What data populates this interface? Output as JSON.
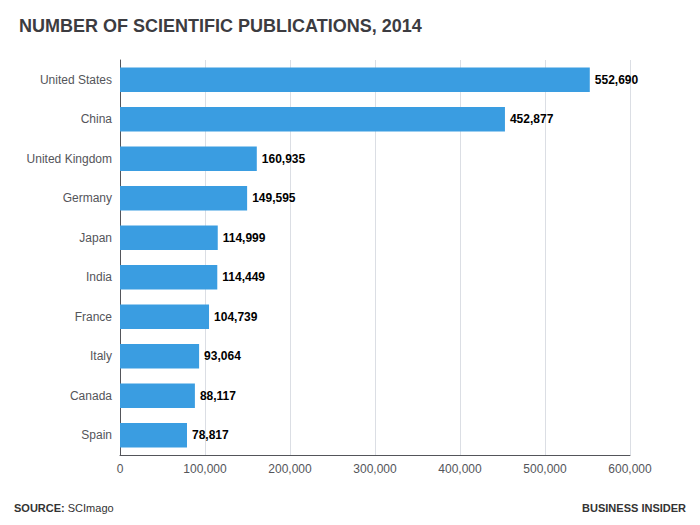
{
  "chart_data": {
    "type": "bar",
    "orientation": "horizontal",
    "title": "NUMBER OF SCIENTIFIC PUBLICATIONS, 2014",
    "categories": [
      "United States",
      "China",
      "United Kingdom",
      "Germany",
      "Japan",
      "India",
      "France",
      "Italy",
      "Canada",
      "Spain"
    ],
    "values": [
      552690,
      452877,
      160935,
      149595,
      114999,
      114449,
      104739,
      93064,
      88117,
      78817
    ],
    "value_labels": [
      "552,690",
      "452,877",
      "160,935",
      "149,595",
      "114,999",
      "114,449",
      "104,739",
      "93,064",
      "88,117",
      "78,817"
    ],
    "data_labels": true,
    "color": "#3a9de1",
    "xlim": [
      0,
      600000
    ],
    "xticks": [
      0,
      {
        "value": 100000,
        "label": "100,000"
      },
      {
        "value": 200000,
        "label": "200,000"
      },
      {
        "value": 300000,
        "label": "300,000"
      },
      {
        "value": 400000,
        "label": "400,000"
      },
      {
        "value": 500000,
        "label": "500,000"
      },
      {
        "value": 600000,
        "label": "600,000"
      }
    ],
    "grid": true,
    "annotations": [
      "SOURCE:",
      "SCImago",
      "BUSINESS INSIDER"
    ]
  }
}
